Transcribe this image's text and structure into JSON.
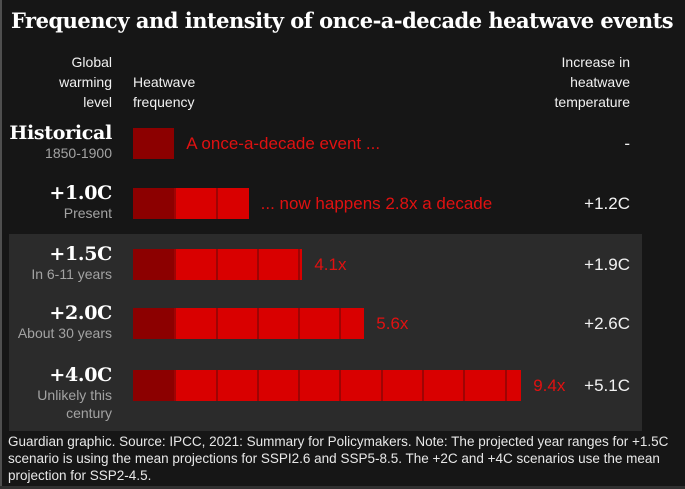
{
  "title": "Frequency and intensity of once-a-decade heatwave events",
  "columns": {
    "warming_level": "Global\nwarming\nlevel",
    "frequency": "Heatwave\nfrequency",
    "temperature": "Increase in\nheatwave\ntemperature"
  },
  "rows": [
    {
      "level": "Historical",
      "sublabel": "1850-1900",
      "frequency": 1.0,
      "annotation": "A once-a-decade event ...",
      "temp_increase": "-",
      "highlight": false
    },
    {
      "level": "+1.0C",
      "sublabel": "Present",
      "frequency": 2.8,
      "annotation": "... now happens 2.8x a decade",
      "temp_increase": "+1.2C",
      "highlight": false
    },
    {
      "level": "+1.5C",
      "sublabel": "In 6-11 years",
      "frequency": 4.1,
      "annotation": "4.1x",
      "temp_increase": "+1.9C",
      "highlight": true
    },
    {
      "level": "+2.0C",
      "sublabel": "About 30 years",
      "frequency": 5.6,
      "annotation": "5.6x",
      "temp_increase": "+2.6C",
      "highlight": true
    },
    {
      "level": "+4.0C",
      "sublabel": "Unlikely this\ncentury",
      "frequency": 9.4,
      "annotation": "9.4x",
      "temp_increase": "+5.1C",
      "highlight": true
    }
  ],
  "footer": "Guardian graphic. Source: IPCC, 2021: Summary for Policymakers. Note: The projected year ranges for +1.5C\nscenario is using the mean projections for SSPI2.6 and SSP5-8.5. The +2C and +4C scenarios use the mean\nprojection for SSP2-4.5.",
  "colors": {
    "background": "#161616",
    "panel": "#2b2b2b",
    "bright_red": "#d90000",
    "dark_red": "#8c0000",
    "separator": "#9e0404",
    "red_text": "#e01111",
    "text_white": "#f2f2f2",
    "text_gray": "#a3a3a3"
  },
  "chart_data": {
    "type": "bar",
    "title": "Frequency and intensity of once-a-decade heatwave events",
    "categories": [
      "Historical (1850-1900)",
      "+1.0C (Present)",
      "+1.5C (In 6-11 years)",
      "+2.0C (About 30 years)",
      "+4.0C (Unlikely this century)"
    ],
    "series": [
      {
        "name": "Heatwave frequency (x per decade)",
        "values": [
          1.0,
          2.8,
          4.1,
          5.6,
          9.4
        ]
      },
      {
        "name": "Increase in heatwave temperature (C)",
        "values": [
          null,
          1.2,
          1.9,
          2.6,
          5.1
        ]
      }
    ],
    "annotations": [
      "A once-a-decade event ...",
      "... now happens 2.8x a decade",
      "4.1x",
      "5.6x",
      "9.4x"
    ],
    "xlabel": "Heatwave frequency",
    "ylabel": "Global warming level",
    "xlim": [
      0,
      10
    ],
    "grid": false,
    "legend_position": "none",
    "baseline_unit_note": "dark red square = historical once-a-decade baseline (1 unit); bright red = additional frequency"
  }
}
